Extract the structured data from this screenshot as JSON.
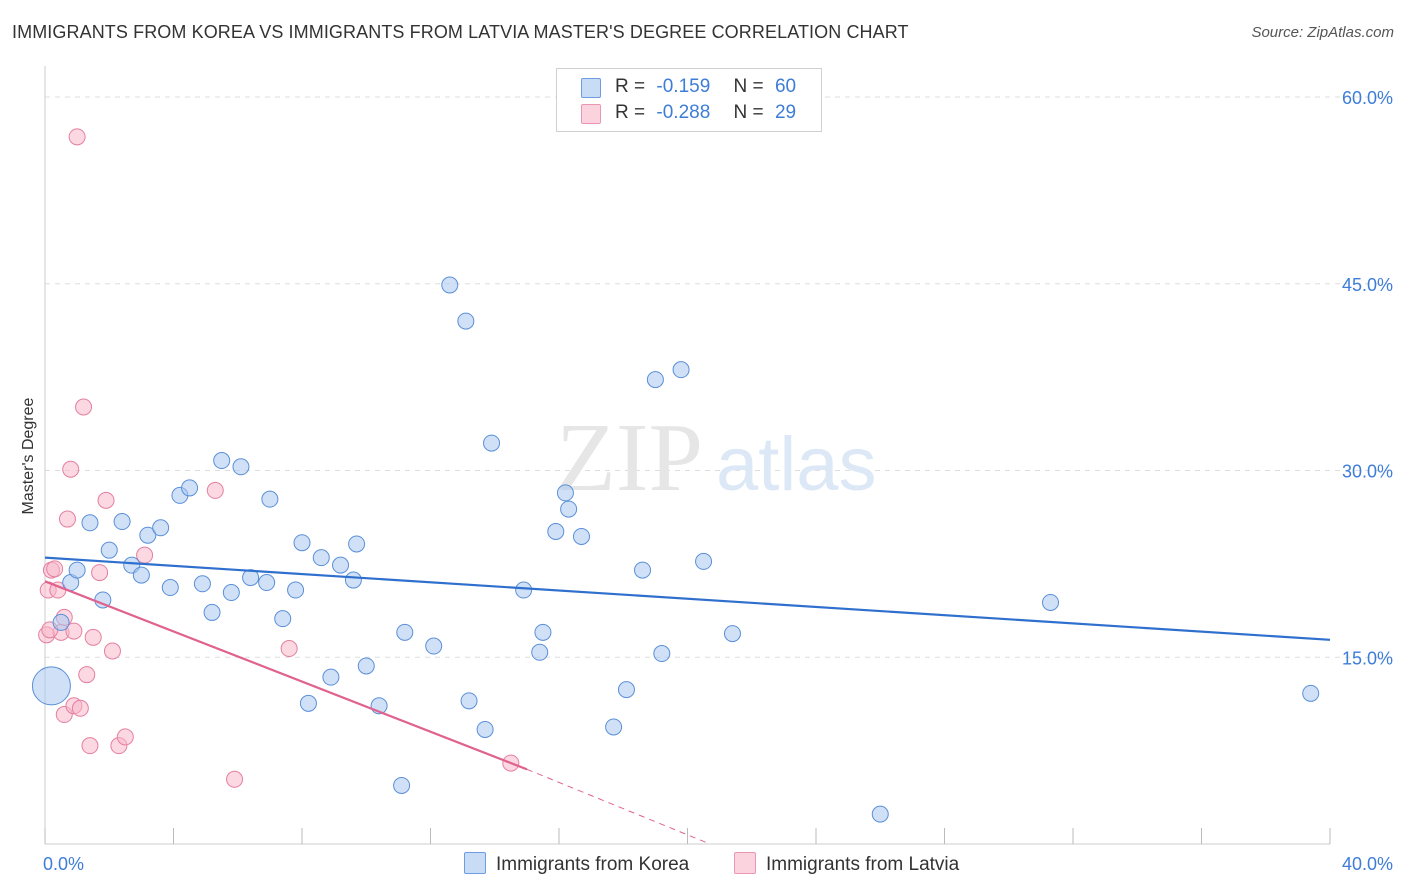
{
  "header": {
    "title": "IMMIGRANTS FROM KOREA VS IMMIGRANTS FROM LATVIA MASTER'S DEGREE CORRELATION CHART",
    "source": "Source: ZipAtlas.com"
  },
  "legend": {
    "rows": [
      {
        "r_label": "R =",
        "r_value": "-0.159",
        "n_label": "N =",
        "n_value": "60",
        "color": "#a9c8f0"
      },
      {
        "r_label": "R =",
        "r_value": "-0.288",
        "n_label": "N =",
        "n_value": "29",
        "color": "#f7b8cb"
      }
    ],
    "series_names": [
      "Immigrants from Korea",
      "Immigrants from Latvia"
    ]
  },
  "watermark": {
    "zip": "ZIP",
    "atlas": "atlas"
  },
  "colors": {
    "korea_fill": "#a9c8f0",
    "korea_stroke": "#5a8fd8",
    "korea_line": "#2f6fce",
    "latvia_fill": "#f7b8cb",
    "latvia_stroke": "#e57fa0",
    "latvia_line": "#e0628e",
    "tick_text": "#3d7dd8",
    "grid": "#dddddd"
  },
  "chart_data": {
    "type": "scatter",
    "title": "IMMIGRANTS FROM KOREA VS IMMIGRANTS FROM LATVIA MASTER'S DEGREE CORRELATION CHART",
    "xlabel": "",
    "ylabel": "Master's Degree",
    "xlim": [
      0,
      40
    ],
    "ylim": [
      0,
      60
    ],
    "x_tick_labels": [
      "0.0%",
      "40.0%"
    ],
    "y_ticks": [
      15,
      30,
      45,
      60
    ],
    "y_tick_labels": [
      "15.0%",
      "30.0%",
      "45.0%",
      "60.0%"
    ],
    "series": [
      {
        "name": "Immigrants from Korea",
        "r": -0.159,
        "n": 60,
        "trend": {
          "x": [
            0,
            40
          ],
          "y": [
            23.0,
            16.4
          ]
        },
        "points": [
          {
            "x": 0.2,
            "y": 12.7,
            "big": true
          },
          {
            "x": 0.5,
            "y": 17.8
          },
          {
            "x": 0.8,
            "y": 21.0
          },
          {
            "x": 1.0,
            "y": 22.0
          },
          {
            "x": 1.4,
            "y": 25.8
          },
          {
            "x": 1.8,
            "y": 19.6
          },
          {
            "x": 2.0,
            "y": 23.6
          },
          {
            "x": 2.4,
            "y": 25.9
          },
          {
            "x": 2.7,
            "y": 22.4
          },
          {
            "x": 3.0,
            "y": 21.6
          },
          {
            "x": 3.2,
            "y": 24.8
          },
          {
            "x": 3.6,
            "y": 25.4
          },
          {
            "x": 3.9,
            "y": 20.6
          },
          {
            "x": 4.2,
            "y": 28.0
          },
          {
            "x": 4.5,
            "y": 28.6
          },
          {
            "x": 4.9,
            "y": 20.9
          },
          {
            "x": 5.2,
            "y": 18.6
          },
          {
            "x": 5.5,
            "y": 30.8
          },
          {
            "x": 5.8,
            "y": 20.2
          },
          {
            "x": 6.1,
            "y": 30.3
          },
          {
            "x": 6.4,
            "y": 21.4
          },
          {
            "x": 6.9,
            "y": 21.0
          },
          {
            "x": 7.0,
            "y": 27.7
          },
          {
            "x": 7.4,
            "y": 18.1
          },
          {
            "x": 7.8,
            "y": 20.4
          },
          {
            "x": 8.0,
            "y": 24.2
          },
          {
            "x": 8.2,
            "y": 11.3
          },
          {
            "x": 8.6,
            "y": 23.0
          },
          {
            "x": 8.9,
            "y": 13.4
          },
          {
            "x": 9.2,
            "y": 22.4
          },
          {
            "x": 9.6,
            "y": 21.2
          },
          {
            "x": 9.7,
            "y": 24.1
          },
          {
            "x": 10.0,
            "y": 14.3
          },
          {
            "x": 10.4,
            "y": 11.1
          },
          {
            "x": 11.1,
            "y": 4.7
          },
          {
            "x": 11.2,
            "y": 17.0
          },
          {
            "x": 12.1,
            "y": 15.9
          },
          {
            "x": 12.6,
            "y": 44.9
          },
          {
            "x": 13.1,
            "y": 42.0
          },
          {
            "x": 13.2,
            "y": 11.5
          },
          {
            "x": 13.7,
            "y": 9.2
          },
          {
            "x": 13.9,
            "y": 32.2
          },
          {
            "x": 14.9,
            "y": 20.4
          },
          {
            "x": 15.4,
            "y": 15.4
          },
          {
            "x": 15.5,
            "y": 17.0
          },
          {
            "x": 15.9,
            "y": 25.1
          },
          {
            "x": 16.2,
            "y": 28.2
          },
          {
            "x": 16.3,
            "y": 26.9
          },
          {
            "x": 16.7,
            "y": 24.7
          },
          {
            "x": 17.7,
            "y": 9.4
          },
          {
            "x": 18.1,
            "y": 12.4
          },
          {
            "x": 18.6,
            "y": 22.0
          },
          {
            "x": 19.0,
            "y": 37.3
          },
          {
            "x": 19.2,
            "y": 15.3
          },
          {
            "x": 19.8,
            "y": 38.1
          },
          {
            "x": 20.5,
            "y": 22.7
          },
          {
            "x": 21.4,
            "y": 16.9
          },
          {
            "x": 26.0,
            "y": 2.4
          },
          {
            "x": 31.3,
            "y": 19.4
          },
          {
            "x": 39.4,
            "y": 12.1
          }
        ]
      },
      {
        "name": "Immigrants from Latvia",
        "r": -0.288,
        "n": 29,
        "trend": {
          "x": [
            0,
            15
          ],
          "y": [
            21.1,
            6.0
          ]
        },
        "trend_dashed": {
          "x": [
            15,
            20.7
          ],
          "y": [
            6.0,
            0.0
          ]
        },
        "points": [
          {
            "x": 0.05,
            "y": 16.8
          },
          {
            "x": 0.1,
            "y": 20.4
          },
          {
            "x": 0.2,
            "y": 22.0
          },
          {
            "x": 0.3,
            "y": 22.1
          },
          {
            "x": 0.4,
            "y": 20.4
          },
          {
            "x": 0.5,
            "y": 17.0
          },
          {
            "x": 0.6,
            "y": 18.2
          },
          {
            "x": 0.6,
            "y": 10.4
          },
          {
            "x": 0.7,
            "y": 26.1
          },
          {
            "x": 0.8,
            "y": 30.1
          },
          {
            "x": 0.9,
            "y": 11.1
          },
          {
            "x": 0.9,
            "y": 17.1
          },
          {
            "x": 1.0,
            "y": 56.8
          },
          {
            "x": 1.1,
            "y": 10.9
          },
          {
            "x": 1.2,
            "y": 35.1
          },
          {
            "x": 1.3,
            "y": 13.6
          },
          {
            "x": 1.4,
            "y": 7.9
          },
          {
            "x": 1.5,
            "y": 16.6
          },
          {
            "x": 1.7,
            "y": 21.8
          },
          {
            "x": 1.9,
            "y": 27.6
          },
          {
            "x": 2.1,
            "y": 15.5
          },
          {
            "x": 2.3,
            "y": 7.9
          },
          {
            "x": 2.5,
            "y": 8.6
          },
          {
            "x": 3.1,
            "y": 23.2
          },
          {
            "x": 5.3,
            "y": 28.4
          },
          {
            "x": 5.9,
            "y": 5.2
          },
          {
            "x": 7.6,
            "y": 15.7
          },
          {
            "x": 14.5,
            "y": 6.5
          },
          {
            "x": 0.15,
            "y": 17.2
          }
        ]
      }
    ]
  }
}
